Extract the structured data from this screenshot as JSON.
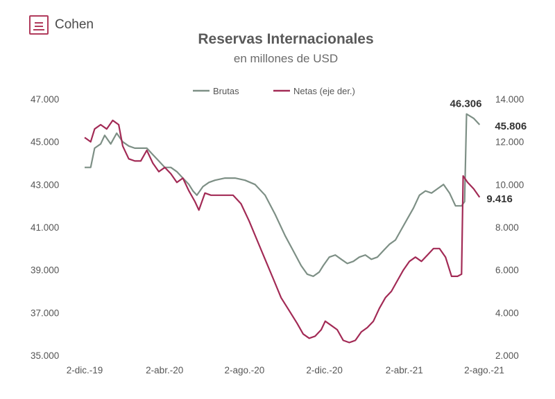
{
  "brand": {
    "name": "Cohen",
    "accent": "#b03a5b"
  },
  "chart_data": {
    "type": "line",
    "title": "Reservas Internacionales",
    "subtitle": "en millones de USD",
    "x_ticks": [
      "2-dic.-19",
      "2-abr.-20",
      "2-ago.-20",
      "2-dic.-20",
      "2-abr.-21",
      "2-ago.-21"
    ],
    "y_left": {
      "ticks": [
        "47.000",
        "45.000",
        "43.000",
        "41.000",
        "39.000",
        "37.000",
        "35.000"
      ],
      "range": [
        35000,
        47000
      ]
    },
    "y_right": {
      "ticks": [
        "14.000",
        "12.000",
        "10.000",
        "8.000",
        "6.000",
        "4.000",
        "2.000"
      ],
      "range": [
        2000,
        14000
      ]
    },
    "legend_position": "top",
    "series": [
      {
        "name": "Brutas",
        "axis": "left",
        "color": "#7d8f85",
        "points": [
          [
            0,
            43.8
          ],
          [
            3,
            43.8
          ],
          [
            5,
            44.7
          ],
          [
            8,
            44.9
          ],
          [
            10,
            45.3
          ],
          [
            13,
            44.9
          ],
          [
            16,
            45.4
          ],
          [
            19,
            45.0
          ],
          [
            22,
            44.8
          ],
          [
            25,
            44.7
          ],
          [
            28,
            44.7
          ],
          [
            31,
            44.7
          ],
          [
            34,
            44.4
          ],
          [
            37,
            44.1
          ],
          [
            40,
            43.8
          ],
          [
            43,
            43.8
          ],
          [
            46,
            43.6
          ],
          [
            49,
            43.3
          ],
          [
            52,
            43.0
          ],
          [
            54,
            42.7
          ],
          [
            56,
            42.5
          ],
          [
            59,
            42.9
          ],
          [
            62,
            43.1
          ],
          [
            65,
            43.2
          ],
          [
            70,
            43.3
          ],
          [
            75,
            43.3
          ],
          [
            80,
            43.2
          ],
          [
            85,
            43.0
          ],
          [
            90,
            42.5
          ],
          [
            95,
            41.6
          ],
          [
            100,
            40.6
          ],
          [
            104,
            39.9
          ],
          [
            108,
            39.2
          ],
          [
            111,
            38.8
          ],
          [
            114,
            38.7
          ],
          [
            117,
            38.9
          ],
          [
            119,
            39.2
          ],
          [
            122,
            39.6
          ],
          [
            125,
            39.7
          ],
          [
            128,
            39.5
          ],
          [
            131,
            39.3
          ],
          [
            134,
            39.4
          ],
          [
            137,
            39.6
          ],
          [
            140,
            39.7
          ],
          [
            143,
            39.5
          ],
          [
            146,
            39.6
          ],
          [
            149,
            39.9
          ],
          [
            152,
            40.2
          ],
          [
            155,
            40.4
          ],
          [
            158,
            40.9
          ],
          [
            161,
            41.4
          ],
          [
            164,
            41.9
          ],
          [
            167,
            42.5
          ],
          [
            170,
            42.7
          ],
          [
            173,
            42.6
          ],
          [
            176,
            42.8
          ],
          [
            179,
            43.0
          ],
          [
            182,
            42.6
          ],
          [
            185,
            42.0
          ],
          [
            188,
            42.0
          ],
          [
            189.5,
            42.2
          ],
          [
            190.5,
            46.3
          ],
          [
            194,
            46.1
          ],
          [
            197,
            45.8
          ]
        ]
      },
      {
        "name": "Netas (eje der.)",
        "axis": "right",
        "color": "#a22a55",
        "points": [
          [
            0,
            12.2
          ],
          [
            3,
            12.0
          ],
          [
            5,
            12.6
          ],
          [
            8,
            12.8
          ],
          [
            11,
            12.6
          ],
          [
            14,
            13.0
          ],
          [
            17,
            12.8
          ],
          [
            19,
            11.8
          ],
          [
            22,
            11.2
          ],
          [
            25,
            11.1
          ],
          [
            28,
            11.1
          ],
          [
            31,
            11.6
          ],
          [
            34,
            11.0
          ],
          [
            37,
            10.6
          ],
          [
            40,
            10.8
          ],
          [
            43,
            10.5
          ],
          [
            46,
            10.1
          ],
          [
            49,
            10.3
          ],
          [
            52,
            9.7
          ],
          [
            55,
            9.2
          ],
          [
            57,
            8.8
          ],
          [
            60,
            9.6
          ],
          [
            63,
            9.5
          ],
          [
            66,
            9.5
          ],
          [
            70,
            9.5
          ],
          [
            74,
            9.5
          ],
          [
            78,
            9.1
          ],
          [
            82,
            8.3
          ],
          [
            86,
            7.4
          ],
          [
            90,
            6.5
          ],
          [
            94,
            5.6
          ],
          [
            98,
            4.7
          ],
          [
            102,
            4.1
          ],
          [
            106,
            3.5
          ],
          [
            109,
            3.0
          ],
          [
            112,
            2.8
          ],
          [
            115,
            2.9
          ],
          [
            118,
            3.2
          ],
          [
            120,
            3.6
          ],
          [
            123,
            3.4
          ],
          [
            126,
            3.2
          ],
          [
            129,
            2.7
          ],
          [
            132,
            2.6
          ],
          [
            135,
            2.7
          ],
          [
            138,
            3.1
          ],
          [
            141,
            3.3
          ],
          [
            144,
            3.6
          ],
          [
            147,
            4.2
          ],
          [
            150,
            4.7
          ],
          [
            153,
            5.0
          ],
          [
            156,
            5.5
          ],
          [
            159,
            6.0
          ],
          [
            162,
            6.4
          ],
          [
            165,
            6.6
          ],
          [
            168,
            6.4
          ],
          [
            171,
            6.7
          ],
          [
            174,
            7.0
          ],
          [
            177,
            7.0
          ],
          [
            180,
            6.6
          ],
          [
            183,
            5.7
          ],
          [
            186,
            5.7
          ],
          [
            188,
            5.8
          ],
          [
            188.8,
            10.4
          ],
          [
            191,
            10.1
          ],
          [
            194,
            9.8
          ],
          [
            197,
            9.4
          ]
        ]
      }
    ],
    "end_labels": [
      {
        "text": "46.306",
        "axis": "left",
        "x": 190.5,
        "y": 46.3
      },
      {
        "text": "45.806",
        "axis": "left",
        "x": 197,
        "y": 45.8
      },
      {
        "text": "9.416",
        "axis": "right",
        "x": 197,
        "y": 9.4
      }
    ],
    "x_domain": [
      0,
      200
    ]
  }
}
